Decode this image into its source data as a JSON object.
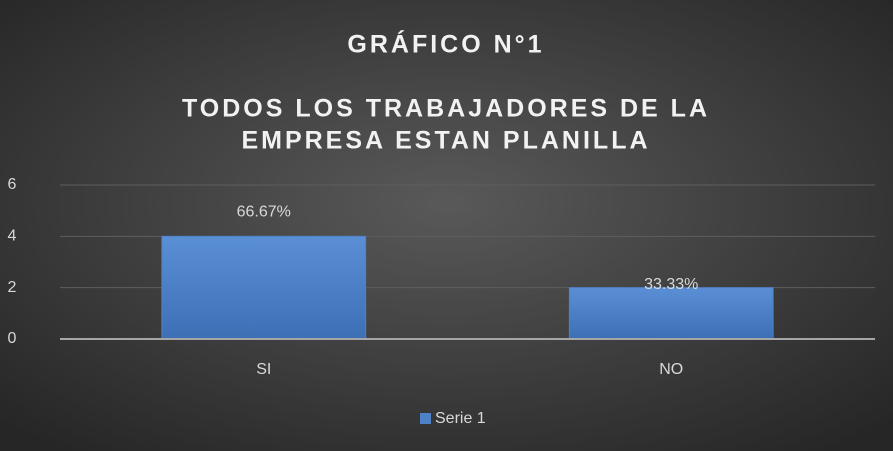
{
  "chart_data": {
    "type": "bar",
    "title": "GRÁFICO N°1",
    "subtitle": [
      "TODOS LOS TRABAJADORES  DE LA",
      "EMPRESA ESTAN PLANILLA"
    ],
    "categories": [
      "SI",
      "NO"
    ],
    "series": [
      {
        "name": "Serie 1",
        "color": "#4f81c7",
        "values": [
          4,
          2
        ]
      }
    ],
    "data_labels": [
      "66.67%",
      "33.33%"
    ],
    "ylim": [
      0,
      6
    ],
    "yticks": [
      0,
      2,
      4,
      6
    ],
    "grid": true,
    "legend": "bottom"
  }
}
